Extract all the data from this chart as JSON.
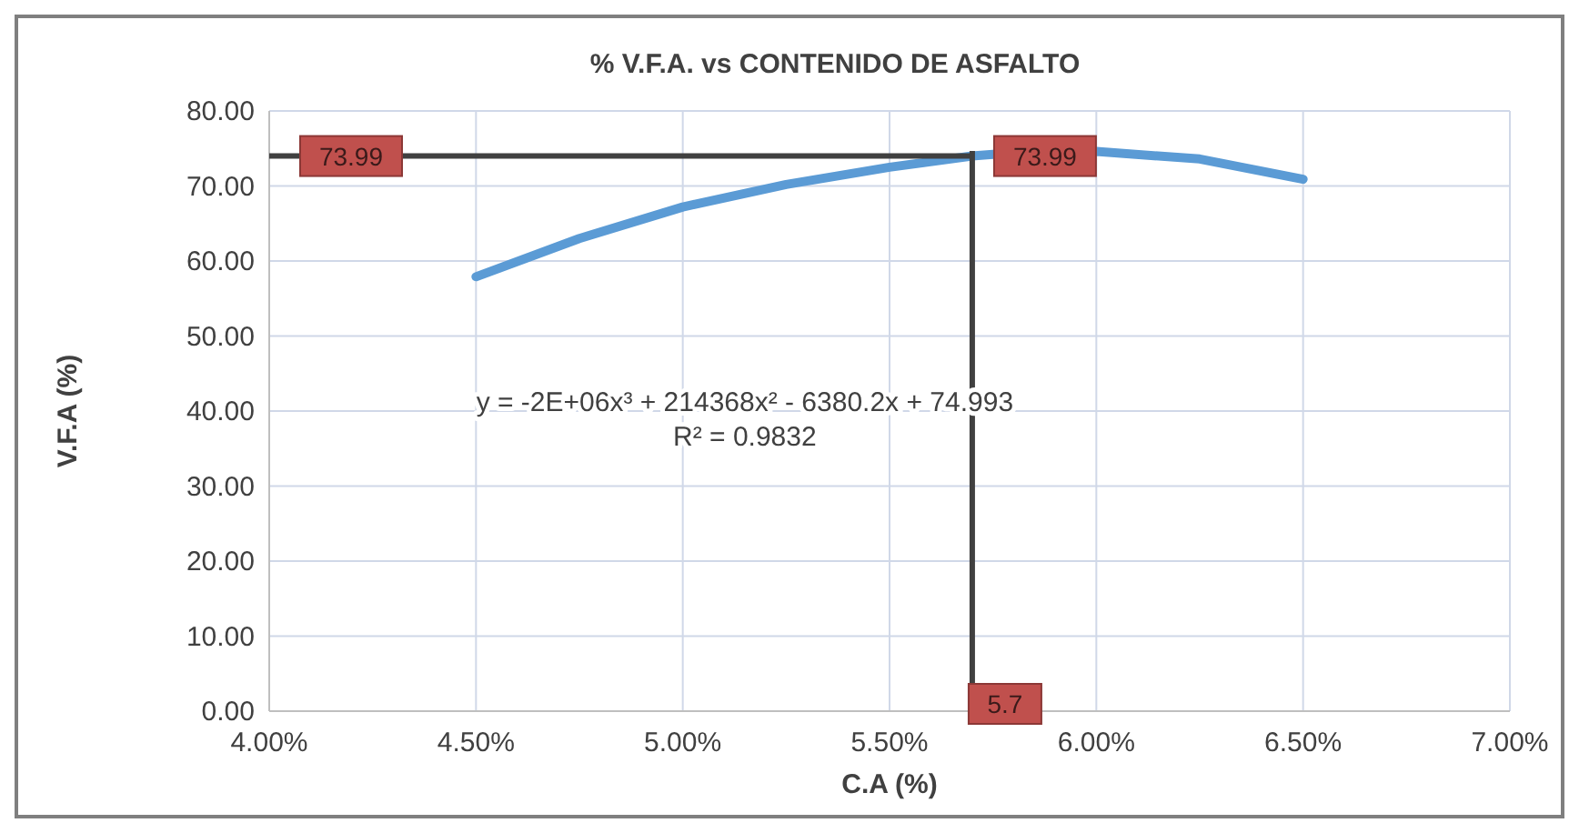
{
  "chart_data": {
    "type": "line",
    "title": "% V.F.A. vs CONTENIDO DE ASFALTO",
    "xlabel": "C.A (%)",
    "ylabel": "V.F.A (%)",
    "x": [
      0.045,
      0.0475,
      0.05,
      0.0525,
      0.055,
      0.057,
      0.0575,
      0.06,
      0.0625,
      0.065
    ],
    "series": [
      {
        "color": "#5b9bd5",
        "values": [
          57.9,
          63.0,
          67.2,
          70.2,
          72.5,
          74.0,
          74.2,
          74.6,
          73.6,
          70.9
        ]
      }
    ],
    "xlim": [
      0.04,
      0.07
    ],
    "xticks": [
      {
        "value": 0.04,
        "label": "4.00%"
      },
      {
        "value": 0.045,
        "label": "4.50%"
      },
      {
        "value": 0.05,
        "label": "5.00%"
      },
      {
        "value": 0.055,
        "label": "5.50%"
      },
      {
        "value": 0.06,
        "label": "6.00%"
      },
      {
        "value": 0.065,
        "label": "6.50%"
      },
      {
        "value": 0.07,
        "label": "7.00%"
      }
    ],
    "ylim": [
      0,
      80
    ],
    "yticks": [
      {
        "value": 0,
        "label": "0.00"
      },
      {
        "value": 10,
        "label": "10.00"
      },
      {
        "value": 20,
        "label": "20.00"
      },
      {
        "value": 30,
        "label": "30.00"
      },
      {
        "value": 40,
        "label": "40.00"
      },
      {
        "value": 50,
        "label": "50.00"
      },
      {
        "value": 60,
        "label": "60.00"
      },
      {
        "value": 70,
        "label": "70.00"
      },
      {
        "value": 80,
        "label": "80.00"
      }
    ],
    "grid": true,
    "marker": "none",
    "line_style": "solid",
    "ref_lines": [
      {
        "axis": "y",
        "value": 73.99,
        "label": "73.99",
        "color": "#404040"
      },
      {
        "axis": "x",
        "value": 0.057,
        "label": "5.7",
        "color": "#404040"
      }
    ],
    "annotations": [
      {
        "text": "73.99",
        "x": 0.057,
        "y": 73.99
      },
      "y = -2E+06x³ + 214368x² - 6380.2x + 74.993",
      "R² = 0.9832"
    ]
  }
}
